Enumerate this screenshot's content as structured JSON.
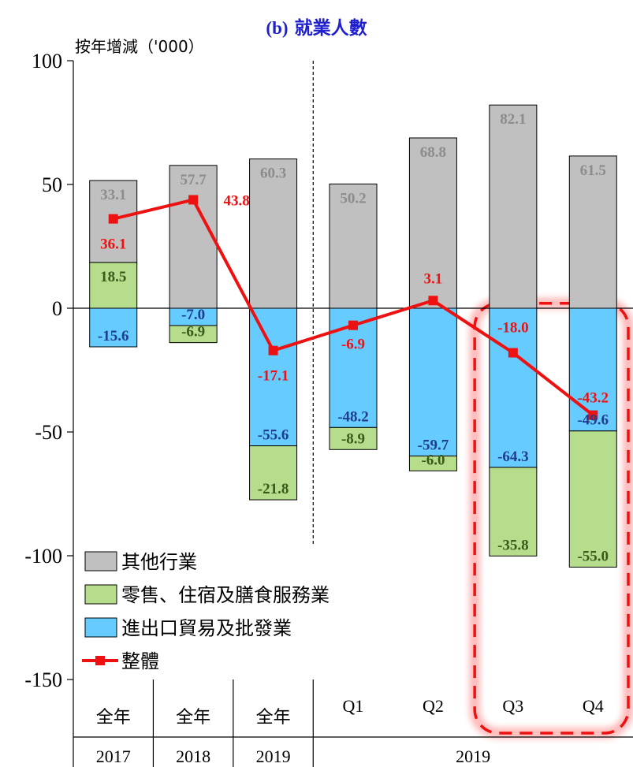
{
  "title_prefix": "(b)",
  "title_main": "就業人數",
  "unit_label": "按年增減（'000）",
  "chart_data": {
    "type": "bar",
    "stacked": true,
    "ylim": [
      -150,
      100
    ],
    "yticks": [
      100,
      50,
      0,
      -50,
      -100,
      -150
    ],
    "categories": [
      "全年 2017",
      "全年 2018",
      "全年 2019",
      "2019 Q1",
      "2019 Q2",
      "2019 Q3",
      "2019 Q4"
    ],
    "x_top_labels": [
      "全年",
      "全年",
      "全年",
      "Q1",
      "Q2",
      "Q3",
      "Q4"
    ],
    "x_bottom_labels": [
      "2017",
      "2018",
      "2019",
      "2019"
    ],
    "series": [
      {
        "name": "進出口貿易及批發業",
        "type": "bar",
        "color": "#66ccff",
        "label_color": "#1f3d8f",
        "values": [
          -15.6,
          -7.0,
          -55.6,
          -48.2,
          -59.7,
          -64.3,
          -49.6
        ]
      },
      {
        "name": "零售、住宿及膳食服務業",
        "type": "bar",
        "color": "#b6dd8c",
        "label_color": "#3a5a1a",
        "values": [
          18.5,
          -6.9,
          -21.8,
          -8.9,
          -6.0,
          -35.8,
          -55.0
        ]
      },
      {
        "name": "其他行業",
        "type": "bar",
        "color": "#c0c0c0",
        "label_color": "#8c8c8c",
        "values": [
          33.1,
          57.7,
          60.3,
          50.2,
          68.8,
          82.1,
          61.5
        ]
      },
      {
        "name": "整體",
        "type": "line",
        "color": "#ee1111",
        "label_color": "#ee1111",
        "values": [
          36.1,
          43.8,
          -17.1,
          -6.9,
          3.1,
          -18.0,
          -43.2
        ]
      }
    ],
    "legend_placement": "bottom-left",
    "highlight": "Q3-Q4 2019 dashed red rounded box"
  }
}
